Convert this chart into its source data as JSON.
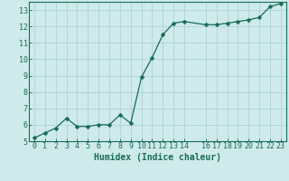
{
  "x": [
    0,
    1,
    2,
    3,
    4,
    5,
    6,
    7,
    8,
    9,
    10,
    11,
    12,
    13,
    14,
    16,
    17,
    18,
    19,
    20,
    21,
    22,
    23
  ],
  "y": [
    5.2,
    5.5,
    5.8,
    6.4,
    5.9,
    5.9,
    6.0,
    6.0,
    6.6,
    6.1,
    8.9,
    10.1,
    11.5,
    12.2,
    12.3,
    12.1,
    12.1,
    12.2,
    12.3,
    12.4,
    12.55,
    13.2,
    13.4
  ],
  "line_color": "#1a6b5a",
  "marker": "D",
  "marker_size": 2.5,
  "bg_color": "#ceeaea",
  "grid_color": "#aed4d4",
  "xlabel": "Humidex (Indice chaleur)",
  "xlim": [
    -0.5,
    23.5
  ],
  "ylim": [
    5,
    13.5
  ],
  "yticks": [
    5,
    6,
    7,
    8,
    9,
    10,
    11,
    12,
    13
  ],
  "xticks": [
    0,
    1,
    2,
    3,
    4,
    5,
    6,
    7,
    8,
    9,
    10,
    11,
    12,
    13,
    14,
    16,
    17,
    18,
    19,
    20,
    21,
    22,
    23
  ],
  "font_color": "#1a6b5a",
  "spine_color": "#1a6b5a",
  "tick_fontsize": 6.0,
  "xlabel_fontsize": 7.0
}
